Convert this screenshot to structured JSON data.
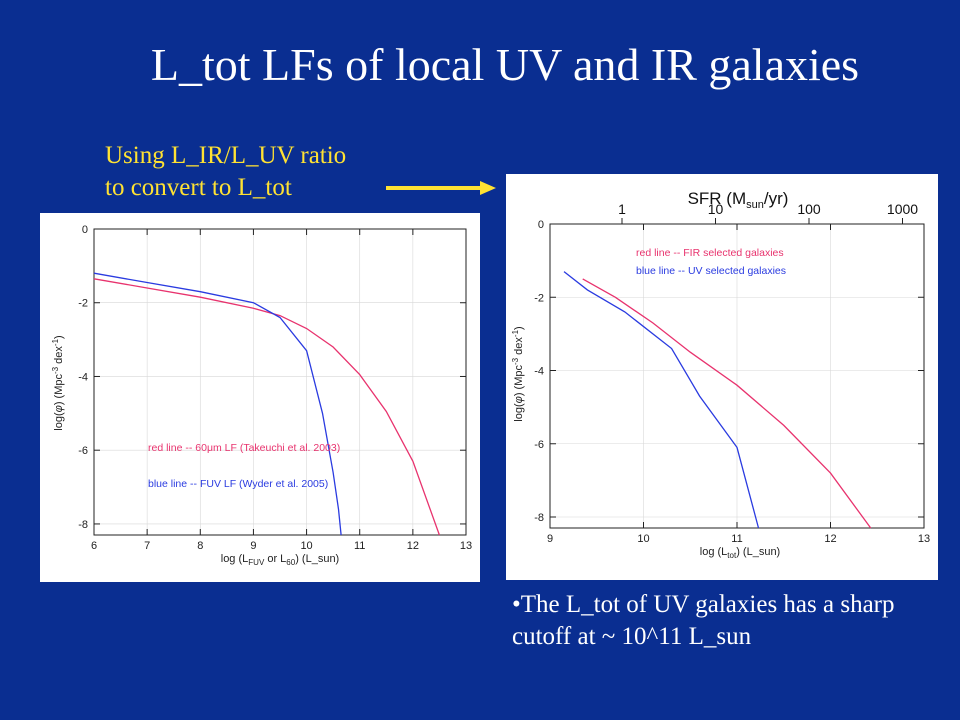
{
  "slide": {
    "title": "L_tot LFs of local UV and IR galaxies",
    "note_line1": "Using L_IR/L_UV ratio",
    "note_line2": "to convert to L_tot",
    "bullet": "•The L_tot of UV galaxies has a sharp cutoff at ~ 10^11 L_sun"
  },
  "colors": {
    "background": "#0a2e91",
    "red_series": "#e8336e",
    "blue_series": "#2a3be0",
    "note": "#ffe233"
  },
  "chart_data": [
    {
      "type": "line",
      "xlim": [
        6,
        13
      ],
      "ylim": [
        -8.3,
        0
      ],
      "x_ticks": [
        6,
        7,
        8,
        9,
        10,
        11,
        12,
        13
      ],
      "y_ticks": [
        0,
        -2,
        -4,
        -6,
        -8
      ],
      "x_tick_labels": [
        "6",
        "7",
        "8",
        "9",
        "10",
        "11",
        "12",
        "13"
      ],
      "y_tick_labels": [
        "0",
        "-2",
        "-4",
        "-6",
        "-8"
      ],
      "xlabel": {
        "pre": "log (L",
        "sub1": "FUV",
        "mid": " or L",
        "sub2": "60",
        "post": ") (L_sun)"
      },
      "ylabel": {
        "pre": "log(",
        "phi": "φ",
        "mid": ") (Mpc",
        "sup1": "-3",
        "mid2": " dex",
        "sup2": "-1",
        "post": ")"
      },
      "annotations": {
        "red": "red line -- 60μm LF (Takeuchi et al. 2003)",
        "blue": "blue line -- FUV LF (Wyder et al. 2005)"
      },
      "series": [
        {
          "color": "#e8336e",
          "x": [
            6,
            7,
            8,
            9,
            9.5,
            10,
            10.5,
            11,
            11.5,
            12,
            12.5
          ],
          "y": [
            -1.35,
            -1.6,
            -1.85,
            -2.15,
            -2.35,
            -2.7,
            -3.2,
            -3.95,
            -4.95,
            -6.3,
            -8.3
          ]
        },
        {
          "color": "#2a3be0",
          "x": [
            6,
            7,
            8,
            9,
            9.5,
            10,
            10.3,
            10.5,
            10.6,
            10.65
          ],
          "y": [
            -1.2,
            -1.45,
            -1.7,
            -2.0,
            -2.4,
            -3.3,
            -5.0,
            -6.6,
            -7.6,
            -8.3
          ]
        }
      ]
    },
    {
      "type": "line",
      "xlim": [
        9,
        13
      ],
      "ylim": [
        -8.3,
        0
      ],
      "x_ticks": [
        9,
        10,
        11,
        12,
        13
      ],
      "y_ticks": [
        0,
        -2,
        -4,
        -6,
        -8
      ],
      "x_tick_labels": [
        "9",
        "10",
        "11",
        "12",
        "13"
      ],
      "y_tick_labels": [
        "0",
        "-2",
        "-4",
        "-6",
        "-8"
      ],
      "top_axis": {
        "label": {
          "pre": "SFR (M",
          "sub": "sun",
          "post": "/yr)"
        },
        "x_ticks": [
          9.77,
          10.77,
          11.77,
          12.77
        ],
        "x_tick_labels": [
          "1",
          "10",
          "100",
          "1000"
        ]
      },
      "xlabel": {
        "pre": "log (L",
        "sub": "tot",
        "post": ") (L_sun)"
      },
      "ylabel": {
        "pre": "log(",
        "phi": "φ",
        "mid": ") (Mpc",
        "sup1": "-3",
        "mid2": " dex",
        "sup2": "-1",
        "post": ")"
      },
      "annotations": {
        "red": "red line -- FIR selected galaxies",
        "blue": "blue line -- UV selected galaxies"
      },
      "series": [
        {
          "color": "#e8336e",
          "x": [
            9.35,
            9.7,
            10.1,
            10.5,
            11.0,
            11.5,
            12.0,
            12.43
          ],
          "y": [
            -1.5,
            -2.0,
            -2.7,
            -3.5,
            -4.4,
            -5.5,
            -6.8,
            -8.3
          ]
        },
        {
          "color": "#2a3be0",
          "x": [
            9.15,
            9.4,
            9.8,
            10.3,
            10.6,
            11.0,
            11.23
          ],
          "y": [
            -1.3,
            -1.8,
            -2.4,
            -3.4,
            -4.7,
            -6.1,
            -8.3
          ]
        }
      ]
    }
  ]
}
